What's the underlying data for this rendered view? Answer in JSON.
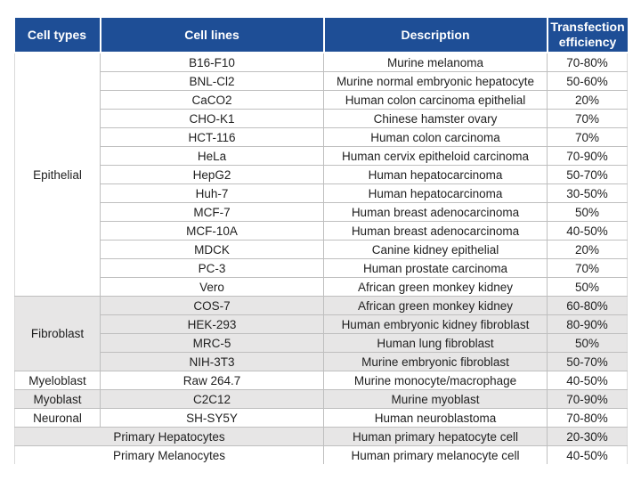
{
  "colors": {
    "header_bg": "#1e4e96",
    "header_text": "#ffffff",
    "shaded_row_bg": "#e7e6e6",
    "row_border": "#bfbfbf",
    "body_text": "#1f1f1f"
  },
  "chart_data": {
    "type": "table",
    "columns": [
      "Cell types",
      "Cell lines",
      "Description",
      "Transfection efficiency"
    ],
    "groups": [
      {
        "cell_type": "Epithelial",
        "shaded": false,
        "rows": [
          [
            "B16-F10",
            "Murine melanoma",
            "70-80%"
          ],
          [
            "BNL-Cl2",
            "Murine normal embryonic hepatocyte",
            "50-60%"
          ],
          [
            "CaCO2",
            "Human colon carcinoma epithelial",
            "20%"
          ],
          [
            "CHO-K1",
            "Chinese hamster ovary",
            "70%"
          ],
          [
            "HCT-116",
            "Human colon carcinoma",
            "70%"
          ],
          [
            "HeLa",
            "Human cervix epitheloid carcinoma",
            "70-90%"
          ],
          [
            "HepG2",
            "Human hepatocarcinoma",
            "50-70%"
          ],
          [
            "Huh-7",
            "Human hepatocarcinoma",
            "30-50%"
          ],
          [
            "MCF-7",
            "Human breast adenocarcinoma",
            "50%"
          ],
          [
            "MCF-10A",
            "Human breast adenocarcinoma",
            "40-50%"
          ],
          [
            "MDCK",
            "Canine kidney epithelial",
            "20%"
          ],
          [
            "PC-3",
            "Human prostate carcinoma",
            "70%"
          ],
          [
            "Vero",
            "African green monkey kidney",
            "50%"
          ]
        ]
      },
      {
        "cell_type": "Fibroblast",
        "shaded": true,
        "rows": [
          [
            "COS-7",
            "African green monkey kidney",
            "60-80%"
          ],
          [
            "HEK-293",
            "Human embryonic kidney fibroblast",
            "80-90%"
          ],
          [
            "MRC-5",
            "Human lung fibroblast",
            "50%"
          ],
          [
            "NIH-3T3",
            "Murine embryonic fibroblast",
            "50-70%"
          ]
        ]
      },
      {
        "cell_type": "Myeloblast",
        "shaded": false,
        "rows": [
          [
            "Raw 264.7",
            "Murine monocyte/macrophage",
            "40-50%"
          ]
        ]
      },
      {
        "cell_type": "Myoblast",
        "shaded": true,
        "rows": [
          [
            "C2C12",
            "Murine myoblast",
            "70-90%"
          ]
        ]
      },
      {
        "cell_type": "Neuronal",
        "shaded": false,
        "rows": [
          [
            "SH-SY5Y",
            "Human neuroblastoma",
            "70-80%"
          ]
        ]
      }
    ],
    "primary_rows": [
      {
        "label": "Primary Hepatocytes",
        "description": "Human primary hepatocyte cell",
        "efficiency": "20-30%",
        "shaded": true
      },
      {
        "label": "Primary Melanocytes",
        "description": "Human primary melanocyte cell",
        "efficiency": "40-50%",
        "shaded": false
      }
    ]
  }
}
